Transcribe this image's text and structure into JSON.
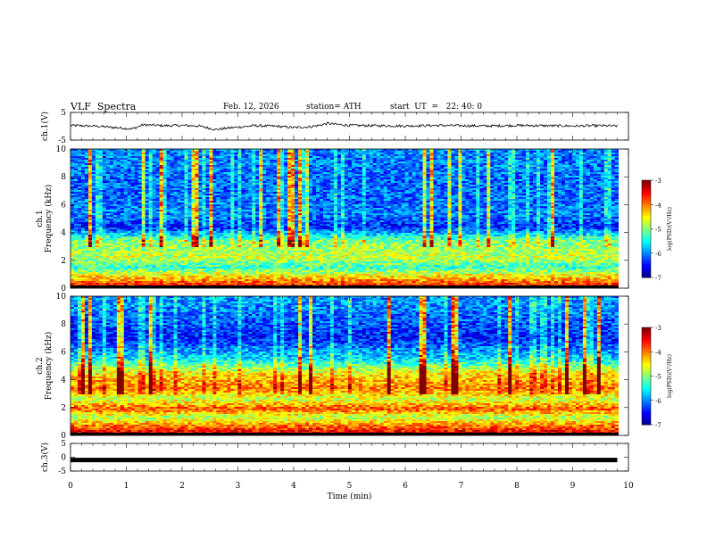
{
  "header": {
    "title": "VLF  Spectra",
    "date": "Feb. 12, 2026",
    "station": "station= ATH",
    "start_ut": "start  UT  =   22: 40: 0"
  },
  "colors": {
    "waveform": "#000000",
    "background": "#ffffff"
  },
  "chart_data": [
    {
      "type": "line",
      "panel": "ch1-waveform",
      "ylabel": "ch.1(V)",
      "ylim": [
        -5,
        5
      ],
      "y_ticks": [
        "5",
        "-5"
      ],
      "xlim": [
        0,
        10
      ],
      "series": [
        {
          "x": [
            0,
            0.5,
            1.0,
            1.1,
            1.3,
            1.7,
            2.0,
            2.3,
            2.6,
            2.9,
            3.3,
            3.7,
            4.0,
            4.3,
            4.5,
            4.6,
            5.0,
            5.5,
            6.0,
            6.5,
            7.0,
            7.5,
            8.0,
            8.5,
            9.0,
            9.5,
            9.8
          ],
          "values": [
            0.3,
            0.0,
            -0.8,
            -1.0,
            0.5,
            0.2,
            0.3,
            0.1,
            -1.2,
            -0.5,
            0.2,
            0.0,
            -0.5,
            -0.2,
            0.5,
            1.0,
            0.3,
            0.2,
            0.1,
            0.3,
            0.2,
            0.1,
            0.3,
            0.2,
            0.1,
            0.2,
            0.1
          ]
        }
      ]
    },
    {
      "type": "heatmap",
      "panel": "ch1-spectrogram",
      "ylabel": "ch.1\nFrequency (kHz)",
      "ylim": [
        0,
        10
      ],
      "y_ticks": [
        "0",
        "2",
        "4",
        "6",
        "8",
        "10"
      ],
      "xlim": [
        0,
        10
      ],
      "color_scale": {
        "label": "log(PSD)(V²/Hz)",
        "range": [
          -7,
          -3
        ],
        "ticks": [
          "-7",
          "-6",
          "-5",
          "-4",
          "-3"
        ]
      },
      "band_levels": [
        {
          "f": 0.2,
          "level": -3.6
        },
        {
          "f": 0.7,
          "level": -4.2
        },
        {
          "f": 1.5,
          "level": -5.3
        },
        {
          "f": 2.2,
          "level": -4.7
        },
        {
          "f": 3.4,
          "level": -5.0
        },
        {
          "f": 4.4,
          "level": -6.4
        },
        {
          "f": 5.2,
          "level": -6.0
        },
        {
          "f": 7.0,
          "level": -6.1
        },
        {
          "f": 9.5,
          "level": -6.0
        }
      ]
    },
    {
      "type": "heatmap",
      "panel": "ch2-spectrogram",
      "ylabel": "ch.2\nFrequency (kHz)",
      "ylim": [
        0,
        10
      ],
      "y_ticks": [
        "0",
        "2",
        "4",
        "6",
        "8",
        "10"
      ],
      "xlim": [
        0,
        10
      ],
      "color_scale": {
        "label": "log(PSD)(V²/Hz)",
        "range": [
          -7,
          -3
        ],
        "ticks": [
          "-7",
          "-6",
          "-5",
          "-4",
          "-3"
        ]
      },
      "band_levels": [
        {
          "f": 0.2,
          "level": -3.4
        },
        {
          "f": 0.7,
          "level": -4.0
        },
        {
          "f": 1.3,
          "level": -4.8
        },
        {
          "f": 1.9,
          "level": -3.8
        },
        {
          "f": 2.6,
          "level": -4.7
        },
        {
          "f": 3.4,
          "level": -4.0
        },
        {
          "f": 4.4,
          "level": -4.4
        },
        {
          "f": 5.5,
          "level": -5.6
        },
        {
          "f": 7.0,
          "level": -6.4
        },
        {
          "f": 9.5,
          "level": -5.9
        }
      ]
    },
    {
      "type": "line",
      "panel": "ch3-waveform",
      "ylabel": "ch.3(V)",
      "ylim": [
        -5,
        5
      ],
      "y_ticks": [
        "5",
        "0",
        "-5"
      ],
      "xlim": [
        0,
        10
      ],
      "xlabel": "Time  (min)",
      "x_ticks": [
        "0",
        "1",
        "2",
        "3",
        "4",
        "5",
        "6",
        "7",
        "8",
        "9",
        "10"
      ],
      "series": [
        {
          "x": [
            0,
            9.8
          ],
          "values": [
            -1.0,
            -1.0
          ]
        }
      ]
    }
  ]
}
